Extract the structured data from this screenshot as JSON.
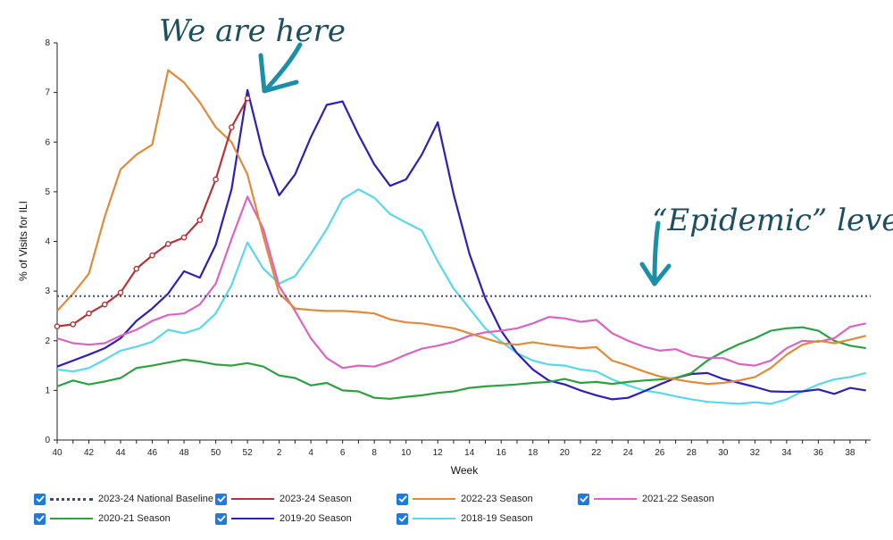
{
  "chart_data": {
    "type": "line",
    "title": "",
    "xlabel": "Week",
    "ylabel": "% of Visits for ILI",
    "ylim": [
      0,
      8
    ],
    "yticks": [
      0,
      1,
      2,
      3,
      4,
      5,
      6,
      7,
      8
    ],
    "weeks": [
      "40",
      "41",
      "42",
      "43",
      "44",
      "45",
      "46",
      "47",
      "48",
      "49",
      "50",
      "51",
      "52",
      "1",
      "2",
      "3",
      "4",
      "5",
      "6",
      "7",
      "8",
      "9",
      "10",
      "11",
      "12",
      "13",
      "14",
      "15",
      "16",
      "17",
      "18",
      "19",
      "20",
      "21",
      "22",
      "23",
      "24",
      "25",
      "26",
      "27",
      "28",
      "29",
      "30",
      "31",
      "32",
      "33",
      "34",
      "35",
      "36",
      "37",
      "38",
      "39"
    ],
    "xtick_labels": [
      "40",
      "42",
      "44",
      "46",
      "48",
      "50",
      "52",
      "2",
      "4",
      "6",
      "8",
      "10",
      "12",
      "14",
      "16",
      "18",
      "20",
      "22",
      "24",
      "26",
      "28",
      "30",
      "32",
      "34",
      "36",
      "38"
    ],
    "series": [
      {
        "name": "2023-24 National Baseline",
        "color": "#3b4b7a",
        "dashed": true,
        "values": [
          2.9,
          2.9,
          2.9,
          2.9,
          2.9,
          2.9,
          2.9,
          2.9,
          2.9,
          2.9,
          2.9,
          2.9,
          2.9,
          2.9,
          2.9,
          2.9,
          2.9,
          2.9,
          2.9,
          2.9,
          2.9,
          2.9,
          2.9,
          2.9,
          2.9,
          2.9,
          2.9,
          2.9,
          2.9,
          2.9,
          2.9,
          2.9,
          2.9,
          2.9,
          2.9,
          2.9,
          2.9,
          2.9,
          2.9,
          2.9,
          2.9,
          2.9,
          2.9,
          2.9,
          2.9,
          2.9,
          2.9,
          2.9,
          2.9,
          2.9,
          2.9,
          2.9
        ]
      },
      {
        "name": "2023-24 Season",
        "color": "#b5343a",
        "markers": true,
        "values": [
          2.29,
          2.33,
          2.55,
          2.73,
          2.97,
          3.45,
          3.72,
          3.95,
          4.08,
          4.43,
          5.25,
          6.3,
          6.88
        ]
      },
      {
        "name": "2022-23 Season",
        "color": "#e08a3c",
        "values": [
          2.6,
          2.95,
          3.35,
          4.5,
          5.45,
          5.75,
          5.95,
          7.45,
          7.2,
          6.8,
          6.3,
          6.0,
          5.35,
          4.1,
          2.95,
          2.65,
          2.62,
          2.6,
          2.6,
          2.58,
          2.55,
          2.43,
          2.37,
          2.35,
          2.3,
          2.25,
          2.15,
          2.05,
          1.95,
          1.92,
          1.97,
          1.92,
          1.88,
          1.85,
          1.87,
          1.6,
          1.5,
          1.38,
          1.28,
          1.22,
          1.17,
          1.13,
          1.15,
          1.2,
          1.27,
          1.45,
          1.72,
          1.92,
          2.0,
          1.95,
          2.02,
          2.1
        ]
      },
      {
        "name": "2021-22 Season",
        "color": "#d965c0",
        "values": [
          2.05,
          1.95,
          1.92,
          1.95,
          2.1,
          2.22,
          2.4,
          2.52,
          2.55,
          2.73,
          3.15,
          4.05,
          4.9,
          4.25,
          3.1,
          2.6,
          2.05,
          1.65,
          1.45,
          1.5,
          1.48,
          1.58,
          1.72,
          1.84,
          1.9,
          1.98,
          2.1,
          2.17,
          2.2,
          2.25,
          2.35,
          2.48,
          2.45,
          2.38,
          2.42,
          2.15,
          2.0,
          1.88,
          1.8,
          1.83,
          1.7,
          1.65,
          1.65,
          1.53,
          1.5,
          1.6,
          1.85,
          2.0,
          1.98,
          2.05,
          2.28,
          2.35
        ]
      },
      {
        "name": "2020-21 Season",
        "color": "#2ea043",
        "values": [
          1.08,
          1.2,
          1.12,
          1.18,
          1.25,
          1.45,
          1.5,
          1.56,
          1.62,
          1.58,
          1.52,
          1.5,
          1.55,
          1.48,
          1.3,
          1.25,
          1.1,
          1.15,
          1.0,
          0.98,
          0.85,
          0.83,
          0.87,
          0.9,
          0.95,
          0.98,
          1.05,
          1.08,
          1.1,
          1.12,
          1.15,
          1.17,
          1.23,
          1.15,
          1.17,
          1.13,
          1.17,
          1.2,
          1.22,
          1.25,
          1.35,
          1.6,
          1.78,
          1.93,
          2.05,
          2.2,
          2.25,
          2.27,
          2.2,
          2.0,
          1.9,
          1.85
        ]
      },
      {
        "name": "2019-20 Season",
        "color": "#2e1fb5",
        "values": [
          1.48,
          1.6,
          1.72,
          1.85,
          2.05,
          2.4,
          2.65,
          2.95,
          3.4,
          3.27,
          3.93,
          5.05,
          7.05,
          5.75,
          4.93,
          5.35,
          6.1,
          6.75,
          6.82,
          6.15,
          5.55,
          5.12,
          5.25,
          5.75,
          6.4,
          4.95,
          3.75,
          2.85,
          2.2,
          1.75,
          1.42,
          1.2,
          1.12,
          1.0,
          0.9,
          0.82,
          0.85,
          0.98,
          1.12,
          1.25,
          1.33,
          1.35,
          1.23,
          1.15,
          1.07,
          0.98,
          0.97,
          0.98,
          1.02,
          0.93,
          1.05,
          1.0
        ]
      },
      {
        "name": "2018-19 Season",
        "color": "#5ad8ea",
        "values": [
          1.42,
          1.38,
          1.45,
          1.62,
          1.8,
          1.88,
          1.98,
          2.22,
          2.15,
          2.25,
          2.55,
          3.12,
          3.98,
          3.45,
          3.15,
          3.3,
          3.75,
          4.25,
          4.85,
          5.05,
          4.88,
          4.55,
          4.38,
          4.22,
          3.6,
          3.05,
          2.65,
          2.25,
          1.98,
          1.75,
          1.6,
          1.52,
          1.5,
          1.42,
          1.38,
          1.22,
          1.1,
          1.0,
          0.95,
          0.88,
          0.82,
          0.77,
          0.75,
          0.73,
          0.76,
          0.73,
          0.82,
          0.98,
          1.12,
          1.22,
          1.27,
          1.35
        ]
      }
    ]
  },
  "annotations": {
    "here": "We are here",
    "epidemic": "“Epidemic” level"
  },
  "legend": [
    "2023-24 National Baseline",
    "2023-24 Season",
    "2022-23 Season",
    "2021-22 Season",
    "2020-21 Season",
    "2019-20 Season",
    "2018-19 Season"
  ]
}
